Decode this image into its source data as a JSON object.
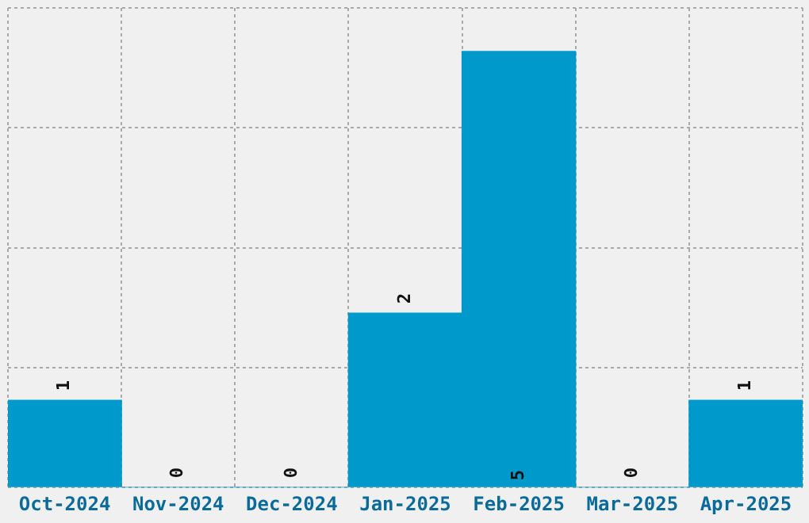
{
  "chart_data": {
    "type": "bar",
    "categories": [
      "Oct-2024",
      "Nov-2024",
      "Dec-2024",
      "Jan-2025",
      "Feb-2025",
      "Mar-2025",
      "Apr-2025"
    ],
    "values": [
      1,
      0,
      0,
      2,
      5,
      0,
      1
    ],
    "color": "#0099cc",
    "ylim": [
      0,
      5.5
    ],
    "yticks": [
      {
        "value": 0,
        "label": null
      },
      {
        "value": 1.375,
        "label": null
      },
      {
        "value": 2.75,
        "label": null
      },
      {
        "value": 4.125,
        "label": null
      },
      {
        "value": 5.5,
        "label": null
      }
    ],
    "tick_labels": "x",
    "grid": true,
    "data_labels": true
  }
}
